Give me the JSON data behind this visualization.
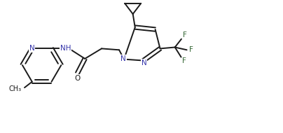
{
  "bg_color": "#ffffff",
  "line_color": "#1a1a1a",
  "n_color": "#3333aa",
  "f_color": "#336633",
  "o_color": "#333333",
  "figsize": [
    4.04,
    1.9
  ],
  "dpi": 100,
  "xlim": [
    0,
    10.5
  ],
  "ylim": [
    0,
    5
  ],
  "lw": 1.4,
  "fs": 7.5
}
